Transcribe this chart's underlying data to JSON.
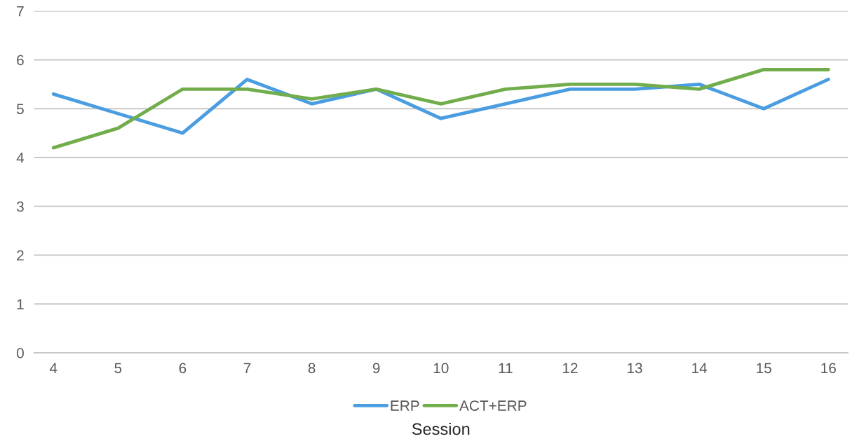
{
  "chart_data": {
    "type": "line",
    "xlabel": "Session",
    "categories": [
      "4",
      "5",
      "6",
      "7",
      "8",
      "9",
      "10",
      "11",
      "12",
      "13",
      "14",
      "15",
      "16"
    ],
    "series": [
      {
        "name": "ERP",
        "color": "#4a9de0",
        "values": [
          5.3,
          4.9,
          4.5,
          5.6,
          5.1,
          5.4,
          4.8,
          5.1,
          5.4,
          5.4,
          5.5,
          5.0,
          5.6
        ]
      },
      {
        "name": "ACT+ERP",
        "color": "#72ad4c",
        "values": [
          4.2,
          4.6,
          5.4,
          5.4,
          5.2,
          5.4,
          5.1,
          5.4,
          5.5,
          5.5,
          5.4,
          5.8,
          5.8
        ]
      }
    ],
    "ylim": [
      0,
      7
    ],
    "yticks": [
      0,
      1,
      2,
      3,
      4,
      5,
      6,
      7
    ],
    "grid": "y",
    "legend": "bottom",
    "marker": "none",
    "line_style": "solid"
  }
}
